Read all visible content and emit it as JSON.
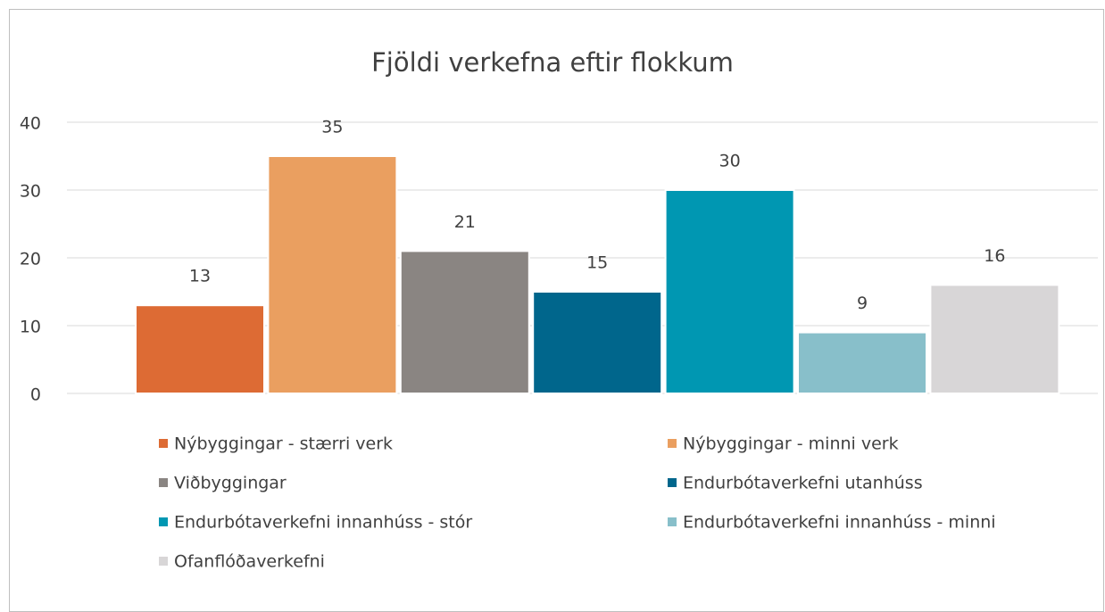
{
  "chart_data": {
    "type": "bar",
    "title": "Fjöldi verkefna eftir flokkum",
    "series": [
      {
        "name": "Nýbyggingar - stærri verk",
        "color": "#dd6b34",
        "values": [
          13
        ]
      },
      {
        "name": "Nýbyggingar - minni verk",
        "color": "#ea9f60",
        "values": [
          35
        ]
      },
      {
        "name": "Viðbyggingar",
        "color": "#8a8582",
        "values": [
          21
        ]
      },
      {
        "name": "Endurbótaverkefni utanhúss",
        "color": "#00668c",
        "values": [
          15
        ]
      },
      {
        "name": "Endurbótaverkefni innanhúss - stór",
        "color": "#0097b2",
        "values": [
          30
        ]
      },
      {
        "name": "Endurbótaverkefni innanhúss - minni",
        "color": "#88bfca",
        "values": [
          9
        ]
      },
      {
        "name": "Ofanflóðaverkefni",
        "color": "#d8d6d7",
        "values": [
          16
        ]
      }
    ],
    "ylim": [
      0,
      40
    ],
    "yticks": [
      0,
      10,
      20,
      30,
      40
    ],
    "grid": true
  }
}
